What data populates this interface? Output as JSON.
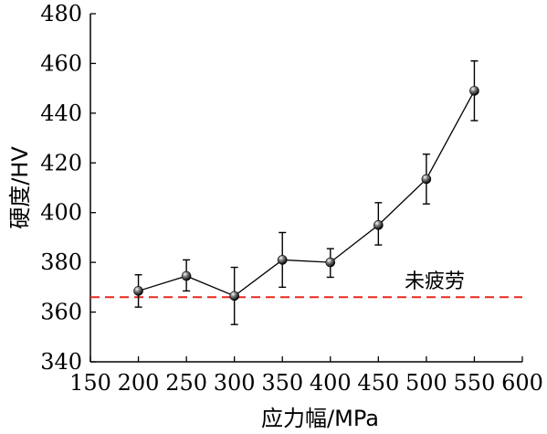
{
  "chart_data": {
    "type": "line",
    "xlabel": "应力幅/MPa",
    "ylabel": "硬度/HV",
    "xlim": [
      150,
      600
    ],
    "ylim": [
      340,
      480
    ],
    "x_ticks": [
      150,
      200,
      250,
      300,
      350,
      400,
      450,
      500,
      550,
      600
    ],
    "y_ticks": [
      340,
      360,
      380,
      400,
      420,
      440,
      460,
      480
    ],
    "grid": false,
    "series": [
      {
        "x": [
          200,
          250,
          300,
          350,
          400,
          450,
          500,
          550
        ],
        "y": [
          368.5,
          374.5,
          366.5,
          381,
          380,
          395,
          413.5,
          449
        ],
        "err_low": [
          362,
          368.5,
          355,
          370,
          374,
          387,
          403.5,
          437
        ],
        "err_high": [
          375,
          381,
          378,
          392,
          385.5,
          404,
          423.5,
          461
        ],
        "color": "#000000",
        "marker": "sphere"
      }
    ],
    "reference_line": {
      "y": 366,
      "label": "未疲劳",
      "color": "#e8281e",
      "style": "dashed"
    }
  }
}
